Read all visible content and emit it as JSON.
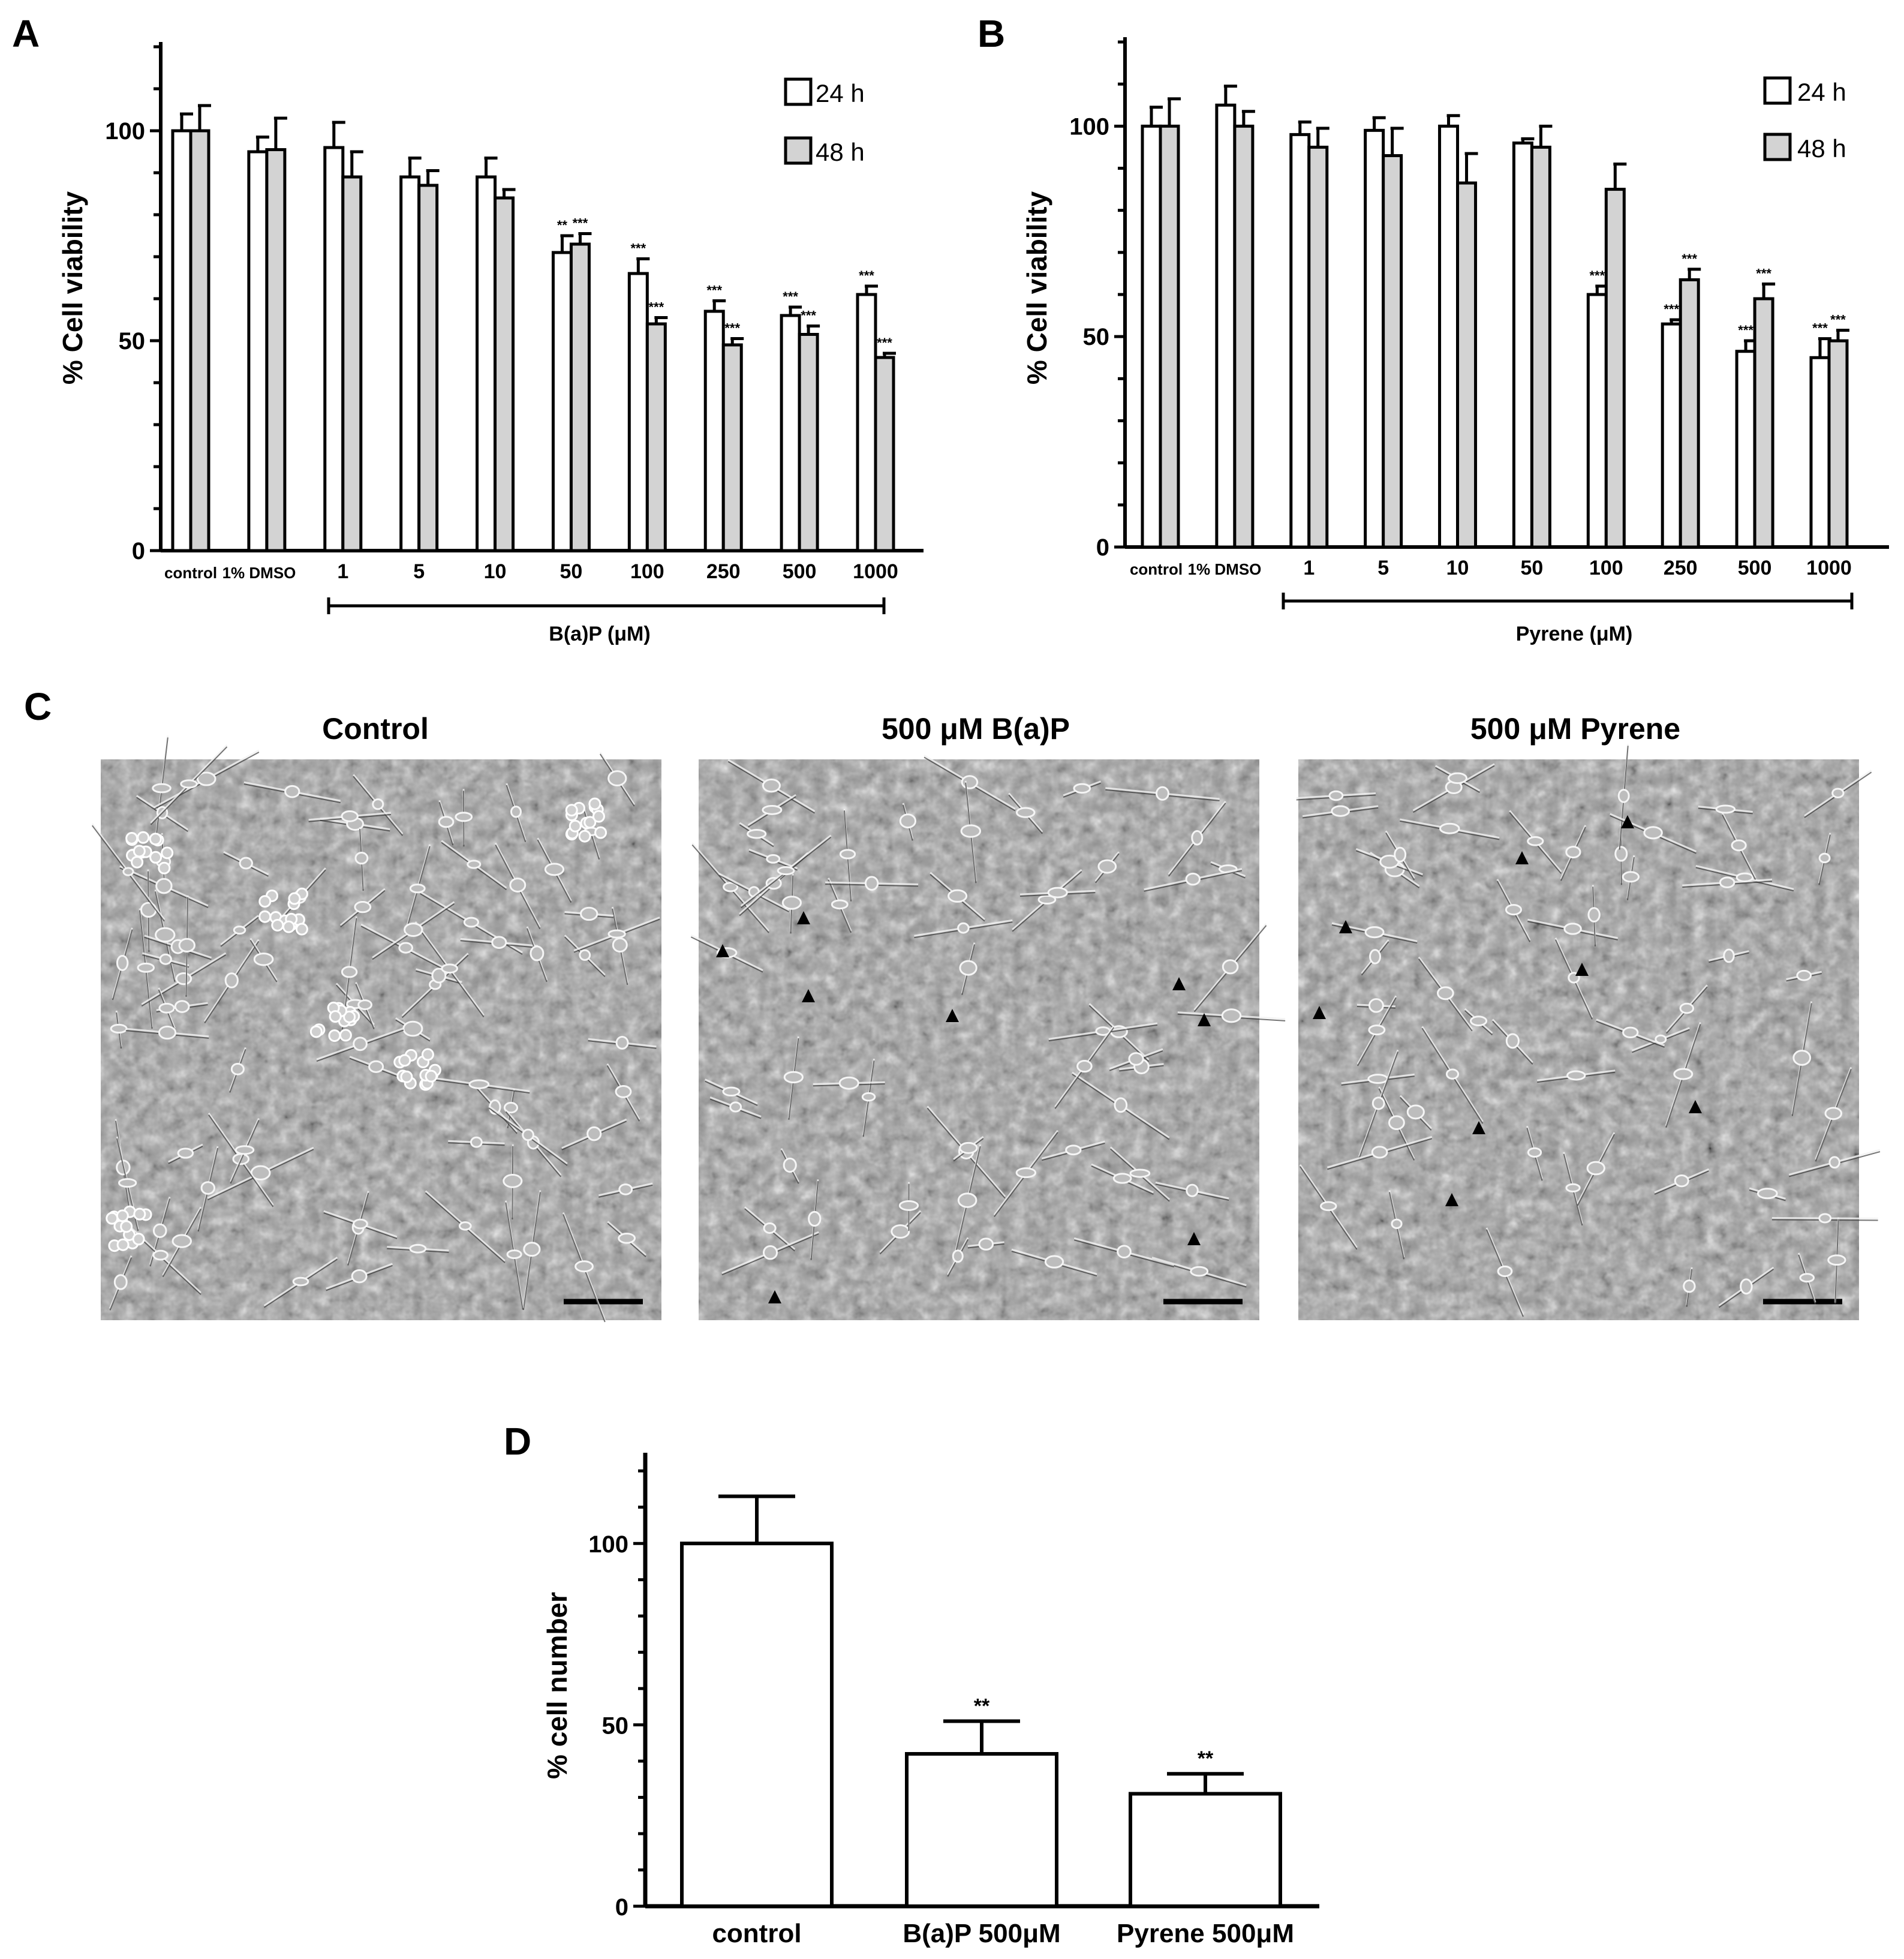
{
  "panel_letters": {
    "a": "A",
    "b": "B",
    "c": "C",
    "d": "D"
  },
  "colors": {
    "h24": "#ffffff",
    "h48": "#d3d3d3",
    "stroke": "#000000",
    "micrograph_bg": "#9a9a9a"
  },
  "panel_c": {
    "titles": [
      "Control",
      "500 μM B(a)P",
      "500 μM Pyrene"
    ],
    "marker": "▲"
  },
  "chart_data": [
    {
      "id": "A",
      "type": "bar",
      "ylabel": "% Cell viability",
      "ylim": [
        0,
        120
      ],
      "yticks": [
        "0",
        "50",
        "100"
      ],
      "bracket_label": "B(a)P (μM)",
      "categories": [
        "control",
        "1% DMSO",
        "1",
        "5",
        "10",
        "50",
        "100",
        "250",
        "500",
        "1000"
      ],
      "series": [
        {
          "name": "24 h",
          "values": [
            100,
            95,
            96,
            89,
            89,
            71,
            66,
            57,
            56,
            61
          ],
          "errors": [
            4,
            3.5,
            6,
            4.5,
            4.5,
            4,
            3.5,
            2.5,
            2,
            2
          ],
          "sig": [
            "",
            "",
            "",
            "",
            "",
            "**",
            "***",
            "***",
            "***",
            "***"
          ]
        },
        {
          "name": "48 h",
          "values": [
            100,
            95.5,
            89,
            87,
            84,
            73,
            54,
            49,
            51.5,
            46
          ],
          "errors": [
            6,
            7.5,
            6,
            3.5,
            2,
            2.5,
            1.5,
            1.5,
            2,
            1
          ],
          "sig": [
            "",
            "",
            "",
            "",
            "",
            "***",
            "***",
            "***",
            "***",
            "***"
          ]
        }
      ],
      "legend_position": "top-right"
    },
    {
      "id": "B",
      "type": "bar",
      "ylabel": "% Cell viability",
      "ylim": [
        0,
        120
      ],
      "yticks": [
        "0",
        "50",
        "100"
      ],
      "bracket_label": "Pyrene (μM)",
      "categories": [
        "control",
        "1% DMSO",
        "1",
        "5",
        "10",
        "50",
        "100",
        "250",
        "500",
        "1000"
      ],
      "series": [
        {
          "name": "24 h",
          "values": [
            100,
            105,
            98,
            99,
            100,
            96,
            60,
            53,
            46.5,
            45
          ],
          "errors": [
            4.5,
            4.5,
            3,
            3,
            2.5,
            1,
            2,
            1,
            2.5,
            4.5
          ],
          "sig": [
            "",
            "",
            "",
            "",
            "",
            "",
            "***",
            "***",
            "***",
            "***"
          ]
        },
        {
          "name": "48 h",
          "values": [
            100,
            100,
            95,
            93,
            86.5,
            95,
            85,
            63.5,
            59,
            49
          ],
          "errors": [
            6.5,
            3.5,
            4.5,
            6.5,
            7,
            5,
            6,
            2.5,
            3.5,
            2.5
          ],
          "sig": [
            "",
            "",
            "",
            "",
            "",
            "",
            "",
            "***",
            "***",
            "***"
          ]
        }
      ],
      "legend_position": "top-right"
    },
    {
      "id": "D",
      "type": "bar",
      "ylabel": "% cell number",
      "ylim": [
        0,
        125
      ],
      "yticks": [
        "0",
        "50",
        "100"
      ],
      "categories": [
        "control",
        "B(a)P 500μM",
        "Pyrene 500μM"
      ],
      "values": [
        100,
        42,
        31
      ],
      "errors": [
        13,
        9,
        5.5
      ],
      "sig": [
        "",
        "**",
        "**"
      ]
    }
  ]
}
